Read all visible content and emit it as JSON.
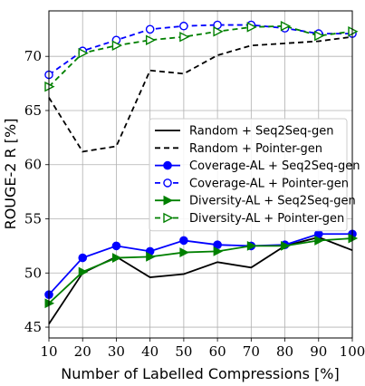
{
  "chart_data": {
    "type": "line",
    "title": "",
    "xlabel": "Number of Labelled Compressions [%]",
    "ylabel": "ROUGE-2 R [%]",
    "x": [
      10,
      20,
      30,
      40,
      50,
      60,
      70,
      80,
      90,
      100
    ],
    "xlim": [
      10,
      100
    ],
    "ylim": [
      44,
      74.2
    ],
    "xticks": [
      10,
      20,
      30,
      40,
      50,
      60,
      70,
      80,
      90,
      100
    ],
    "yticks": [
      45,
      50,
      55,
      60,
      65,
      70
    ],
    "grid": true,
    "legend_position": "center-right",
    "series": [
      {
        "name": "Random + Seq2Seq-gen",
        "color": "#000000",
        "dash": "solid",
        "marker": "none",
        "values": [
          45.3,
          50.0,
          51.5,
          49.6,
          49.9,
          51.0,
          50.5,
          52.5,
          53.3,
          52.1
        ]
      },
      {
        "name": "Random + Pointer-gen",
        "color": "#000000",
        "dash": "dashed",
        "marker": "none",
        "values": [
          66.2,
          61.2,
          61.7,
          68.7,
          68.4,
          70.1,
          71.0,
          71.2,
          71.4,
          71.8
        ]
      },
      {
        "name": "Coverage-AL + Seq2Seq-gen",
        "color": "#0000ff",
        "dash": "solid",
        "marker": "circle-filled",
        "values": [
          48.0,
          51.4,
          52.5,
          52.0,
          53.0,
          52.6,
          52.5,
          52.6,
          53.6,
          53.6
        ]
      },
      {
        "name": "Coverage-AL + Pointer-gen",
        "color": "#0000ff",
        "dash": "dashed",
        "marker": "circle-open",
        "values": [
          68.3,
          70.5,
          71.5,
          72.5,
          72.8,
          72.9,
          72.9,
          72.6,
          72.1,
          72.1
        ]
      },
      {
        "name": "Diversity-AL + Seq2Seq-gen",
        "color": "#008000",
        "dash": "solid",
        "marker": "triangle-filled",
        "values": [
          47.2,
          50.1,
          51.4,
          51.5,
          51.9,
          52.0,
          52.5,
          52.5,
          53.0,
          53.2
        ]
      },
      {
        "name": "Diversity-AL + Pointer-gen",
        "color": "#008000",
        "dash": "dashed",
        "marker": "triangle-open",
        "values": [
          67.2,
          70.3,
          71.0,
          71.5,
          71.8,
          72.3,
          72.7,
          72.8,
          71.9,
          72.3
        ]
      }
    ]
  }
}
